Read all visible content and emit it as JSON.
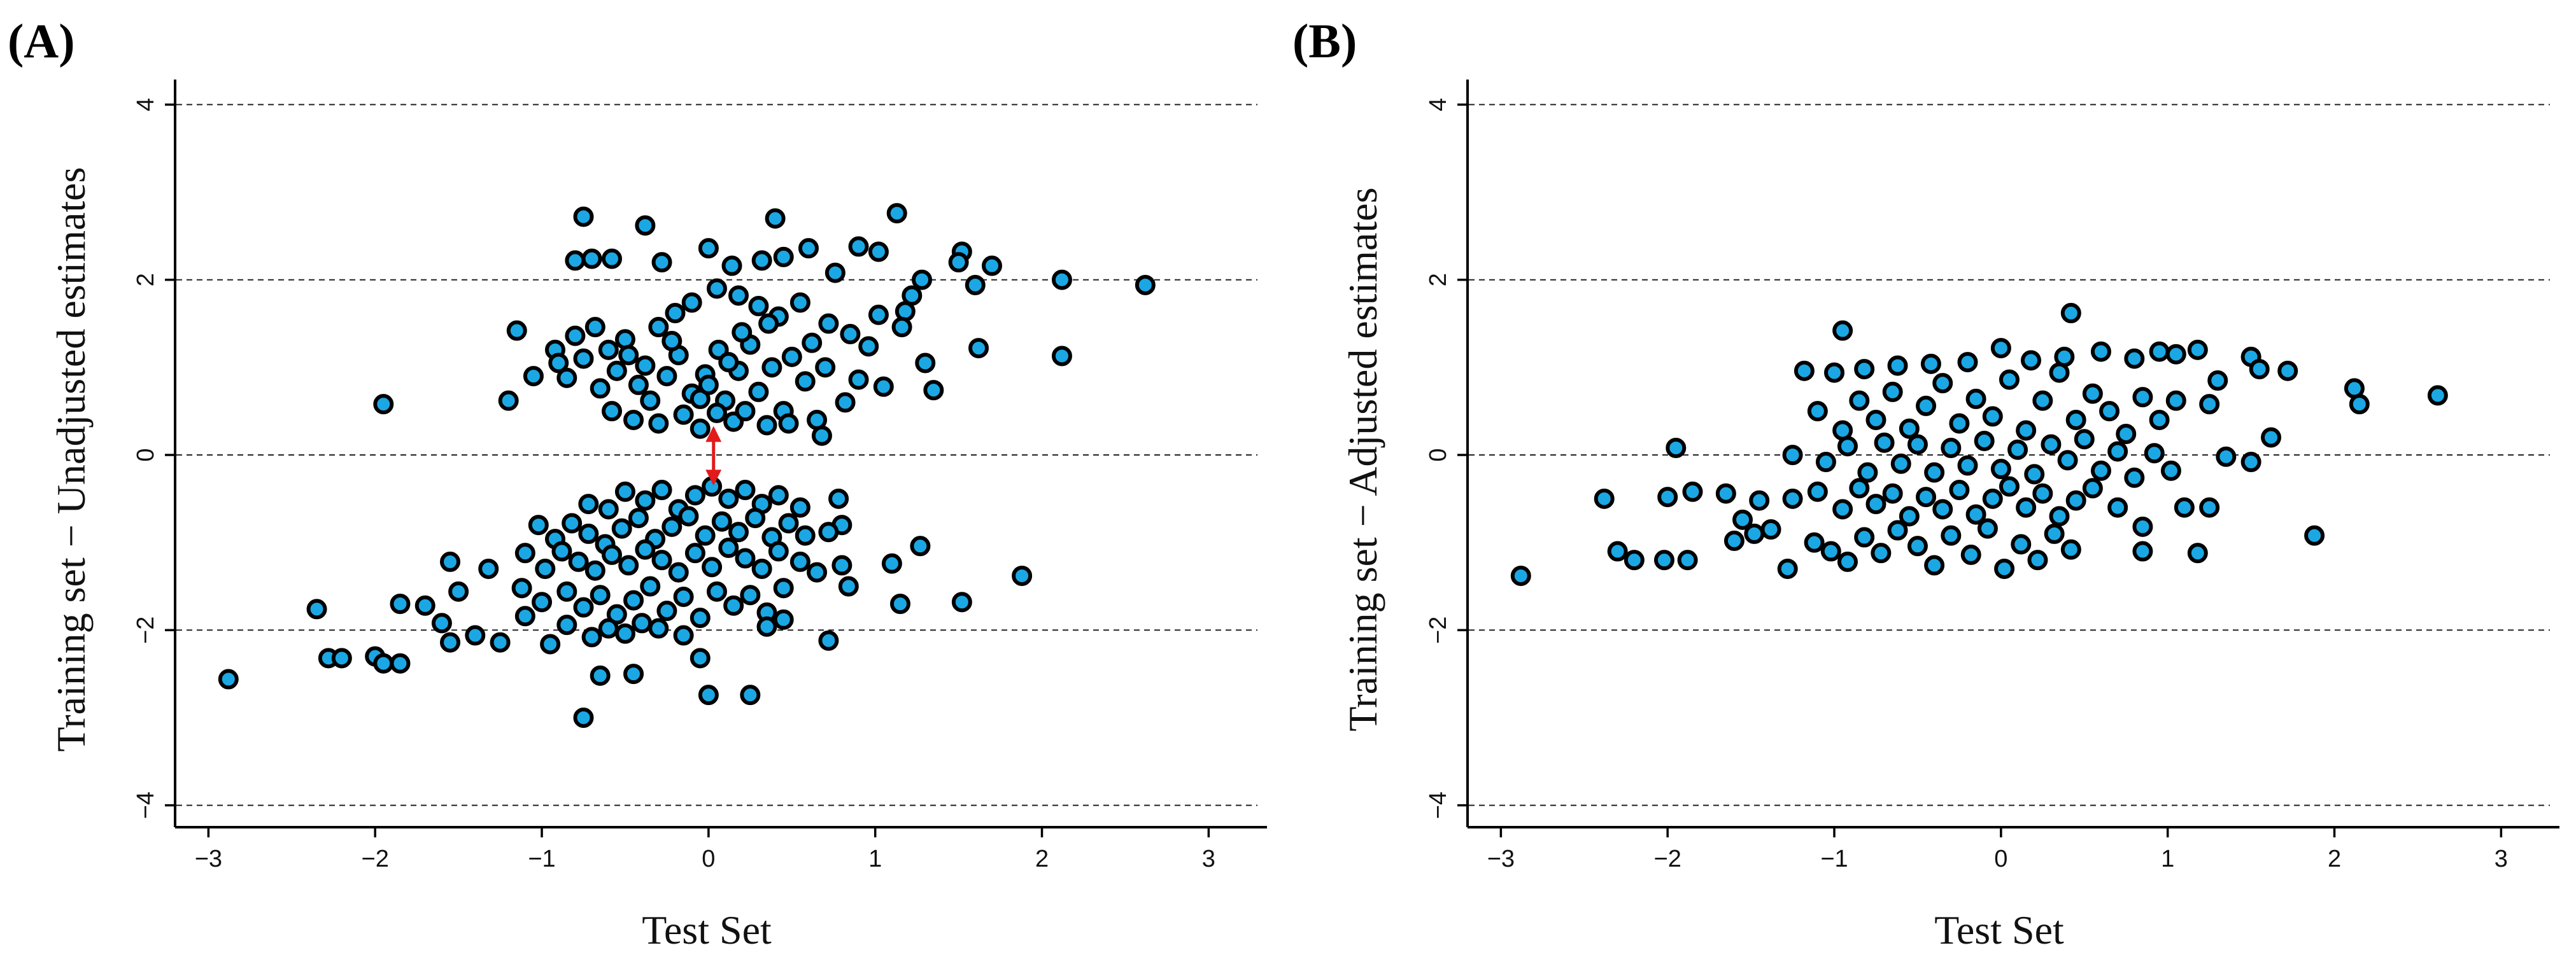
{
  "colors": {
    "point_fill": "#1ba7e4",
    "point_edge": "#000000",
    "arrow": "#e11b1b",
    "grid": "#222222"
  },
  "chart_data": [
    {
      "panel": "(A)",
      "type": "scatter",
      "title": "",
      "xlabel": "Test Set",
      "ylabel": "Training set − Unadjusted estimates",
      "xlim": [
        -3.2,
        3.35
      ],
      "ylim": [
        -4.25,
        4.25
      ],
      "xticks": [
        -3,
        -2,
        -1,
        0,
        1,
        2,
        3
      ],
      "yticks": [
        -4,
        -2,
        0,
        2,
        4
      ],
      "xtick_labels": [
        "−3",
        "−2",
        "−1",
        "0",
        "1",
        "2",
        "3"
      ],
      "ytick_labels": [
        "−4",
        "−2",
        "0",
        "2",
        "4"
      ],
      "grid": "horizontal dashed at y ticks",
      "annotations": [
        {
          "type": "double-arrow",
          "x": 0.03,
          "y_from": -0.32,
          "y_to": 0.3,
          "color": "#e11b1b"
        }
      ],
      "points_upper": [
        [
          -0.75,
          2.72
        ],
        [
          -0.38,
          2.62
        ],
        [
          0.4,
          2.7
        ],
        [
          1.13,
          2.76
        ],
        [
          0.0,
          2.36
        ],
        [
          -0.7,
          2.24
        ],
        [
          -0.8,
          2.22
        ],
        [
          -0.58,
          2.24
        ],
        [
          -0.28,
          2.2
        ],
        [
          0.14,
          2.16
        ],
        [
          0.32,
          2.22
        ],
        [
          0.45,
          2.26
        ],
        [
          0.6,
          2.36
        ],
        [
          0.76,
          2.08
        ],
        [
          0.9,
          2.38
        ],
        [
          1.02,
          2.32
        ],
        [
          1.52,
          2.32
        ],
        [
          1.5,
          2.2
        ],
        [
          1.7,
          2.16
        ],
        [
          2.12,
          2.0
        ],
        [
          2.62,
          1.94
        ],
        [
          1.6,
          1.94
        ],
        [
          1.28,
          2.0
        ],
        [
          1.22,
          1.82
        ],
        [
          1.02,
          1.6
        ],
        [
          1.18,
          1.64
        ],
        [
          1.16,
          1.46
        ],
        [
          -1.15,
          1.42
        ],
        [
          -0.92,
          1.2
        ],
        [
          -0.8,
          1.36
        ],
        [
          -0.68,
          1.46
        ],
        [
          -0.5,
          1.32
        ],
        [
          -0.3,
          1.46
        ],
        [
          -0.2,
          1.62
        ],
        [
          -0.1,
          1.74
        ],
        [
          0.05,
          1.9
        ],
        [
          0.18,
          1.82
        ],
        [
          0.3,
          1.7
        ],
        [
          0.42,
          1.58
        ],
        [
          0.55,
          1.74
        ],
        [
          0.72,
          1.5
        ],
        [
          0.85,
          1.38
        ],
        [
          0.96,
          1.24
        ],
        [
          1.3,
          1.05
        ],
        [
          -1.2,
          0.62
        ],
        [
          -1.05,
          0.9
        ],
        [
          -0.9,
          1.05
        ],
        [
          -0.85,
          0.88
        ],
        [
          -0.75,
          1.1
        ],
        [
          -0.65,
          0.76
        ],
        [
          -0.55,
          0.96
        ],
        [
          -0.48,
          1.14
        ],
        [
          -0.42,
          0.8
        ],
        [
          -0.35,
          0.62
        ],
        [
          -0.25,
          0.9
        ],
        [
          -0.18,
          1.14
        ],
        [
          -0.1,
          0.7
        ],
        [
          -0.02,
          0.92
        ],
        [
          0.06,
          1.2
        ],
        [
          0.1,
          0.62
        ],
        [
          0.18,
          0.96
        ],
        [
          0.25,
          1.26
        ],
        [
          0.3,
          0.72
        ],
        [
          0.38,
          1.0
        ],
        [
          0.45,
          0.5
        ],
        [
          0.5,
          1.12
        ],
        [
          0.58,
          0.84
        ],
        [
          0.65,
          0.4
        ],
        [
          0.7,
          1.0
        ],
        [
          0.82,
          0.6
        ],
        [
          0.9,
          0.86
        ],
        [
          1.05,
          0.78
        ],
        [
          1.62,
          1.22
        ],
        [
          2.12,
          1.13
        ],
        [
          1.35,
          0.74
        ],
        [
          -0.58,
          0.5
        ],
        [
          -0.45,
          0.4
        ],
        [
          -0.3,
          0.36
        ],
        [
          -0.15,
          0.46
        ],
        [
          -0.05,
          0.3
        ],
        [
          0.05,
          0.48
        ],
        [
          0.15,
          0.38
        ],
        [
          0.22,
          0.5
        ],
        [
          0.35,
          0.34
        ],
        [
          0.48,
          0.36
        ],
        [
          0.68,
          0.22
        ],
        [
          -1.95,
          0.58
        ],
        [
          -0.05,
          0.64
        ],
        [
          0.0,
          0.8
        ],
        [
          -0.6,
          1.2
        ],
        [
          0.2,
          1.4
        ],
        [
          0.36,
          1.5
        ],
        [
          -0.22,
          1.3
        ],
        [
          0.62,
          1.28
        ],
        [
          0.12,
          1.06
        ],
        [
          -0.38,
          1.02
        ]
      ],
      "points_lower": [
        [
          -0.72,
          -0.56
        ],
        [
          -0.6,
          -0.62
        ],
        [
          -0.5,
          -0.42
        ],
        [
          -0.38,
          -0.52
        ],
        [
          -0.28,
          -0.4
        ],
        [
          -0.18,
          -0.62
        ],
        [
          -0.08,
          -0.46
        ],
        [
          0.02,
          -0.36
        ],
        [
          0.12,
          -0.5
        ],
        [
          0.22,
          -0.4
        ],
        [
          0.32,
          -0.56
        ],
        [
          0.42,
          -0.46
        ],
        [
          0.55,
          -0.6
        ],
        [
          0.78,
          -0.5
        ],
        [
          0.8,
          -0.8
        ],
        [
          -1.02,
          -0.8
        ],
        [
          -0.92,
          -0.96
        ],
        [
          -0.82,
          -0.78
        ],
        [
          -0.72,
          -0.9
        ],
        [
          -0.62,
          -1.02
        ],
        [
          -0.52,
          -0.84
        ],
        [
          -0.42,
          -0.72
        ],
        [
          -0.32,
          -0.96
        ],
        [
          -0.22,
          -0.82
        ],
        [
          -0.12,
          -0.7
        ],
        [
          -0.02,
          -0.92
        ],
        [
          0.08,
          -0.76
        ],
        [
          0.18,
          -0.88
        ],
        [
          0.28,
          -0.72
        ],
        [
          0.38,
          -0.94
        ],
        [
          0.48,
          -0.78
        ],
        [
          0.58,
          -0.92
        ],
        [
          0.72,
          -0.88
        ],
        [
          -1.1,
          -1.12
        ],
        [
          -0.98,
          -1.3
        ],
        [
          -0.88,
          -1.1
        ],
        [
          -0.78,
          -1.22
        ],
        [
          -0.68,
          -1.32
        ],
        [
          -0.58,
          -1.14
        ],
        [
          -0.48,
          -1.26
        ],
        [
          -0.38,
          -1.08
        ],
        [
          -0.28,
          -1.2
        ],
        [
          -0.18,
          -1.34
        ],
        [
          -0.08,
          -1.12
        ],
        [
          0.02,
          -1.28
        ],
        [
          0.12,
          -1.06
        ],
        [
          0.22,
          -1.18
        ],
        [
          0.32,
          -1.3
        ],
        [
          0.42,
          -1.1
        ],
        [
          0.55,
          -1.22
        ],
        [
          0.65,
          -1.34
        ],
        [
          0.8,
          -1.26
        ],
        [
          0.84,
          -1.5
        ],
        [
          1.27,
          -1.04
        ],
        [
          1.1,
          -1.24
        ],
        [
          -1.55,
          -1.22
        ],
        [
          -1.32,
          -1.3
        ],
        [
          -1.12,
          -1.52
        ],
        [
          -1.0,
          -1.68
        ],
        [
          -0.85,
          -1.56
        ],
        [
          -0.75,
          -1.74
        ],
        [
          -0.65,
          -1.6
        ],
        [
          -0.55,
          -1.82
        ],
        [
          -0.45,
          -1.66
        ],
        [
          -0.35,
          -1.5
        ],
        [
          -0.25,
          -1.78
        ],
        [
          -0.15,
          -1.62
        ],
        [
          -0.05,
          -1.86
        ],
        [
          0.05,
          -1.56
        ],
        [
          0.15,
          -1.72
        ],
        [
          0.25,
          -1.6
        ],
        [
          0.35,
          -1.8
        ],
        [
          0.45,
          -1.52
        ],
        [
          1.15,
          -1.7
        ],
        [
          1.52,
          -1.68
        ],
        [
          1.88,
          -1.38
        ],
        [
          -2.35,
          -1.76
        ],
        [
          -1.85,
          -1.7
        ],
        [
          -1.7,
          -1.72
        ],
        [
          -1.6,
          -1.92
        ],
        [
          -1.55,
          -2.14
        ],
        [
          -1.5,
          -1.56
        ],
        [
          -1.4,
          -2.06
        ],
        [
          -1.25,
          -2.14
        ],
        [
          -1.1,
          -1.84
        ],
        [
          -0.95,
          -2.16
        ],
        [
          -0.85,
          -1.94
        ],
        [
          -0.7,
          -2.08
        ],
        [
          -0.6,
          -1.98
        ],
        [
          -0.5,
          -2.04
        ],
        [
          -0.4,
          -1.92
        ],
        [
          -0.3,
          -1.98
        ],
        [
          -0.15,
          -2.06
        ],
        [
          0.35,
          -1.96
        ],
        [
          0.45,
          -1.88
        ],
        [
          0.72,
          -2.12
        ],
        [
          -2.28,
          -2.32
        ],
        [
          -2.2,
          -2.32
        ],
        [
          -2.0,
          -2.3
        ],
        [
          -1.95,
          -2.38
        ],
        [
          -1.85,
          -2.38
        ],
        [
          -0.65,
          -2.52
        ],
        [
          -0.45,
          -2.5
        ],
        [
          0.0,
          -2.74
        ],
        [
          0.25,
          -2.74
        ],
        [
          -0.05,
          -2.32
        ],
        [
          -2.88,
          -2.56
        ],
        [
          -0.75,
          -3.0
        ]
      ]
    },
    {
      "panel": "(B)",
      "type": "scatter",
      "title": "",
      "xlabel": "Test Set",
      "ylabel": "Training set − Adjusted estimates",
      "xlim": [
        -3.2,
        3.35
      ],
      "ylim": [
        -4.25,
        4.25
      ],
      "xticks": [
        -3,
        -2,
        -1,
        0,
        1,
        2,
        3
      ],
      "yticks": [
        -4,
        -2,
        0,
        2,
        4
      ],
      "xtick_labels": [
        "−3",
        "−2",
        "−1",
        "0",
        "1",
        "2",
        "3"
      ],
      "ytick_labels": [
        "−4",
        "−2",
        "0",
        "2",
        "4"
      ],
      "grid": "horizontal dashed at y ticks",
      "points": [
        [
          0.42,
          1.62
        ],
        [
          -0.95,
          1.42
        ],
        [
          -1.18,
          0.96
        ],
        [
          -1.0,
          0.94
        ],
        [
          -0.82,
          0.98
        ],
        [
          -0.62,
          1.02
        ],
        [
          -0.42,
          1.04
        ],
        [
          -0.2,
          1.06
        ],
        [
          0.0,
          1.22
        ],
        [
          0.18,
          1.08
        ],
        [
          0.38,
          1.12
        ],
        [
          0.6,
          1.18
        ],
        [
          0.8,
          1.1
        ],
        [
          0.95,
          1.18
        ],
        [
          1.05,
          1.15
        ],
        [
          1.18,
          1.2
        ],
        [
          1.5,
          1.12
        ],
        [
          1.72,
          0.96
        ],
        [
          1.3,
          0.85
        ],
        [
          1.55,
          0.98
        ],
        [
          2.12,
          0.76
        ],
        [
          2.15,
          0.58
        ],
        [
          2.62,
          0.68
        ],
        [
          -1.1,
          0.5
        ],
        [
          -0.95,
          0.28
        ],
        [
          -0.85,
          0.62
        ],
        [
          -0.75,
          0.4
        ],
        [
          -0.65,
          0.72
        ],
        [
          -0.55,
          0.3
        ],
        [
          -0.45,
          0.56
        ],
        [
          -0.35,
          0.82
        ],
        [
          -0.25,
          0.36
        ],
        [
          -0.15,
          0.64
        ],
        [
          -0.05,
          0.44
        ],
        [
          0.05,
          0.86
        ],
        [
          0.15,
          0.28
        ],
        [
          0.25,
          0.62
        ],
        [
          0.35,
          0.94
        ],
        [
          0.45,
          0.4
        ],
        [
          0.55,
          0.7
        ],
        [
          0.65,
          0.5
        ],
        [
          0.75,
          0.24
        ],
        [
          0.85,
          0.66
        ],
        [
          0.95,
          0.4
        ],
        [
          1.05,
          0.62
        ],
        [
          1.25,
          0.58
        ],
        [
          1.62,
          0.2
        ],
        [
          1.35,
          -0.02
        ],
        [
          -1.95,
          0.08
        ],
        [
          -1.25,
          0.0
        ],
        [
          -1.05,
          -0.08
        ],
        [
          -0.92,
          0.1
        ],
        [
          -0.8,
          -0.2
        ],
        [
          -0.7,
          0.14
        ],
        [
          -0.6,
          -0.1
        ],
        [
          -0.5,
          0.12
        ],
        [
          -0.4,
          -0.2
        ],
        [
          -0.3,
          0.08
        ],
        [
          -0.2,
          -0.12
        ],
        [
          -0.1,
          0.16
        ],
        [
          0.0,
          -0.16
        ],
        [
          0.1,
          0.06
        ],
        [
          0.2,
          -0.22
        ],
        [
          0.3,
          0.12
        ],
        [
          0.4,
          -0.06
        ],
        [
          0.5,
          0.18
        ],
        [
          0.6,
          -0.18
        ],
        [
          0.7,
          0.04
        ],
        [
          0.8,
          -0.26
        ],
        [
          0.92,
          0.02
        ],
        [
          1.02,
          -0.18
        ],
        [
          1.5,
          -0.08
        ],
        [
          1.1,
          -0.6
        ],
        [
          1.25,
          -0.6
        ],
        [
          -2.38,
          -0.5
        ],
        [
          -2.0,
          -0.48
        ],
        [
          -1.85,
          -0.42
        ],
        [
          -1.65,
          -0.44
        ],
        [
          -1.45,
          -0.52
        ],
        [
          -1.25,
          -0.5
        ],
        [
          -1.1,
          -0.42
        ],
        [
          -0.95,
          -0.62
        ],
        [
          -0.85,
          -0.38
        ],
        [
          -0.75,
          -0.56
        ],
        [
          -0.65,
          -0.44
        ],
        [
          -0.55,
          -0.7
        ],
        [
          -0.45,
          -0.48
        ],
        [
          -0.35,
          -0.62
        ],
        [
          -0.25,
          -0.4
        ],
        [
          -0.15,
          -0.68
        ],
        [
          -0.05,
          -0.5
        ],
        [
          0.05,
          -0.36
        ],
        [
          0.15,
          -0.6
        ],
        [
          0.25,
          -0.44
        ],
        [
          0.35,
          -0.7
        ],
        [
          0.45,
          -0.52
        ],
        [
          0.55,
          -0.38
        ],
        [
          0.7,
          -0.6
        ],
        [
          0.85,
          -0.82
        ],
        [
          -2.3,
          -1.1
        ],
        [
          -2.2,
          -1.2
        ],
        [
          -2.02,
          -1.2
        ],
        [
          -1.88,
          -1.2
        ],
        [
          -1.6,
          -0.98
        ],
        [
          -1.55,
          -0.74
        ],
        [
          -1.48,
          -0.9
        ],
        [
          -1.38,
          -0.85
        ],
        [
          -1.28,
          -1.3
        ],
        [
          -1.12,
          -1.0
        ],
        [
          -1.02,
          -1.1
        ],
        [
          -0.92,
          -1.22
        ],
        [
          -0.82,
          -0.94
        ],
        [
          -0.72,
          -1.12
        ],
        [
          -0.62,
          -0.86
        ],
        [
          -0.5,
          -1.04
        ],
        [
          -0.4,
          -1.26
        ],
        [
          -0.3,
          -0.92
        ],
        [
          -0.18,
          -1.14
        ],
        [
          -0.08,
          -0.84
        ],
        [
          0.02,
          -1.3
        ],
        [
          0.12,
          -1.02
        ],
        [
          0.22,
          -1.2
        ],
        [
          0.32,
          -0.9
        ],
        [
          0.42,
          -1.08
        ],
        [
          0.85,
          -1.1
        ],
        [
          1.18,
          -1.12
        ],
        [
          1.88,
          -0.92
        ],
        [
          -2.88,
          -1.38
        ]
      ]
    }
  ]
}
